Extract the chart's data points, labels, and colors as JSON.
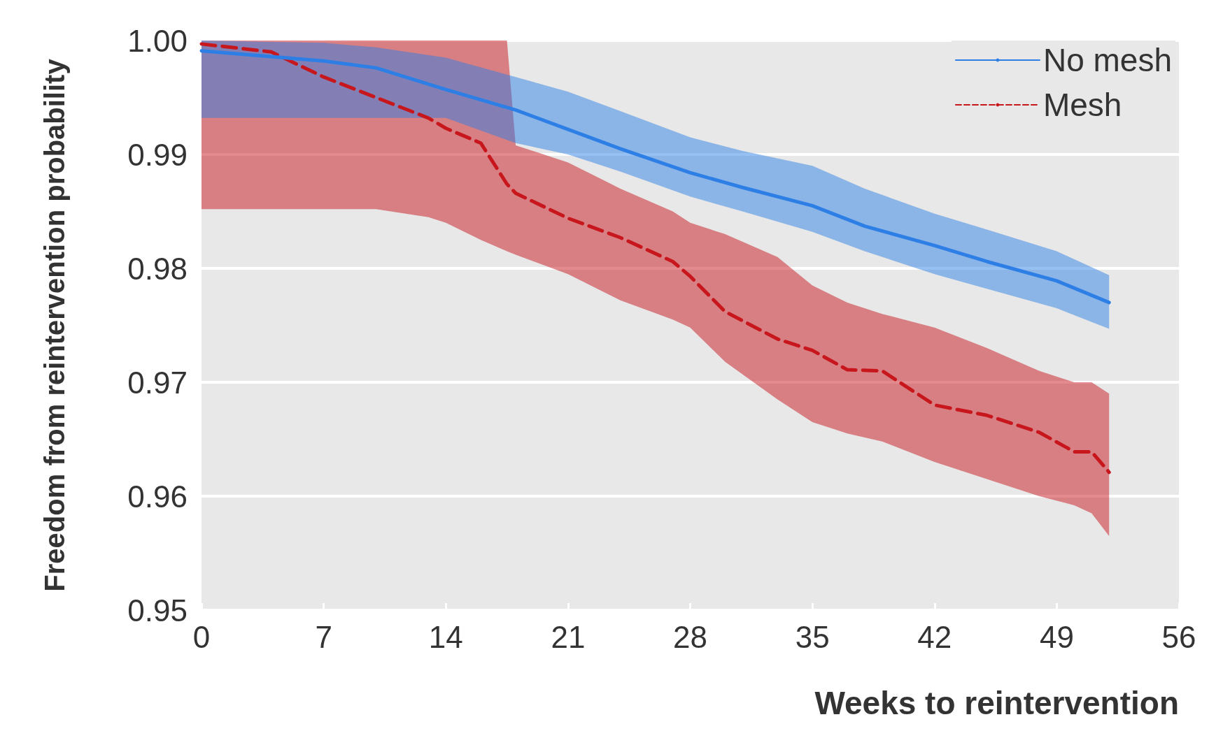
{
  "chart_data": {
    "type": "line",
    "xlabel": "Weeks to reintervention",
    "ylabel": "Freedom from reintervention probability",
    "xlim": [
      0,
      56
    ],
    "xticks": [
      0,
      7,
      14,
      21,
      28,
      35,
      42,
      49,
      56
    ],
    "ylim": [
      0.95,
      1
    ],
    "yticks": [
      0.95,
      0.96,
      0.97,
      0.98,
      0.99,
      {
        "value": 1,
        "label": "1.00"
      }
    ],
    "grid": "y",
    "legend": "top right",
    "series": [
      {
        "name": "Mesh",
        "color": "#c8161d",
        "line_style": "dashed",
        "x": [
          0,
          4,
          7,
          10,
          13,
          14,
          16,
          17.5,
          18,
          21,
          24,
          27,
          28,
          30,
          33,
          35,
          37,
          39,
          42,
          45,
          48,
          50,
          51,
          52
        ],
        "values": [
          0.9997,
          0.999,
          0.9968,
          0.995,
          0.9932,
          0.9923,
          0.991,
          0.9874,
          0.9866,
          0.9844,
          0.9827,
          0.9806,
          0.9793,
          0.9762,
          0.9738,
          0.9728,
          0.9711,
          0.971,
          0.968,
          0.9671,
          0.9656,
          0.9639,
          0.9639,
          0.9621
        ],
        "upper": [
          1,
          1,
          1,
          1,
          1,
          1,
          1,
          1,
          0.9908,
          0.9893,
          0.987,
          0.985,
          0.984,
          0.983,
          0.981,
          0.9785,
          0.977,
          0.976,
          0.9748,
          0.973,
          0.971,
          0.97,
          0.97,
          0.969
        ],
        "lower": [
          0.9852,
          0.9852,
          0.9852,
          0.9852,
          0.9845,
          0.984,
          0.9825,
          0.9815,
          0.9812,
          0.9795,
          0.9772,
          0.9755,
          0.9748,
          0.9718,
          0.9685,
          0.9665,
          0.9655,
          0.9648,
          0.963,
          0.9615,
          0.96,
          0.9592,
          0.9585,
          0.9565
        ]
      },
      {
        "name": "No mesh",
        "color": "#2d7fe6",
        "line_style": "solid",
        "x": [
          0,
          7,
          10,
          14,
          18,
          21,
          24,
          28,
          31,
          35,
          38,
          42,
          45,
          49,
          52
        ],
        "values": [
          0.9991,
          0.9982,
          0.9976,
          0.9957,
          0.9939,
          0.9922,
          0.9905,
          0.9884,
          0.9871,
          0.9855,
          0.9837,
          0.982,
          0.9806,
          0.9789,
          0.977
        ],
        "upper": [
          1,
          0.9998,
          0.9994,
          0.9985,
          0.9968,
          0.9955,
          0.9938,
          0.9915,
          0.9903,
          0.989,
          0.987,
          0.9848,
          0.9834,
          0.9815,
          0.9794
        ],
        "lower": [
          0.9932,
          0.9932,
          0.9932,
          0.9932,
          0.991,
          0.99,
          0.9885,
          0.9863,
          0.985,
          0.9832,
          0.9815,
          0.9795,
          0.9782,
          0.9765,
          0.9747
        ]
      }
    ]
  }
}
